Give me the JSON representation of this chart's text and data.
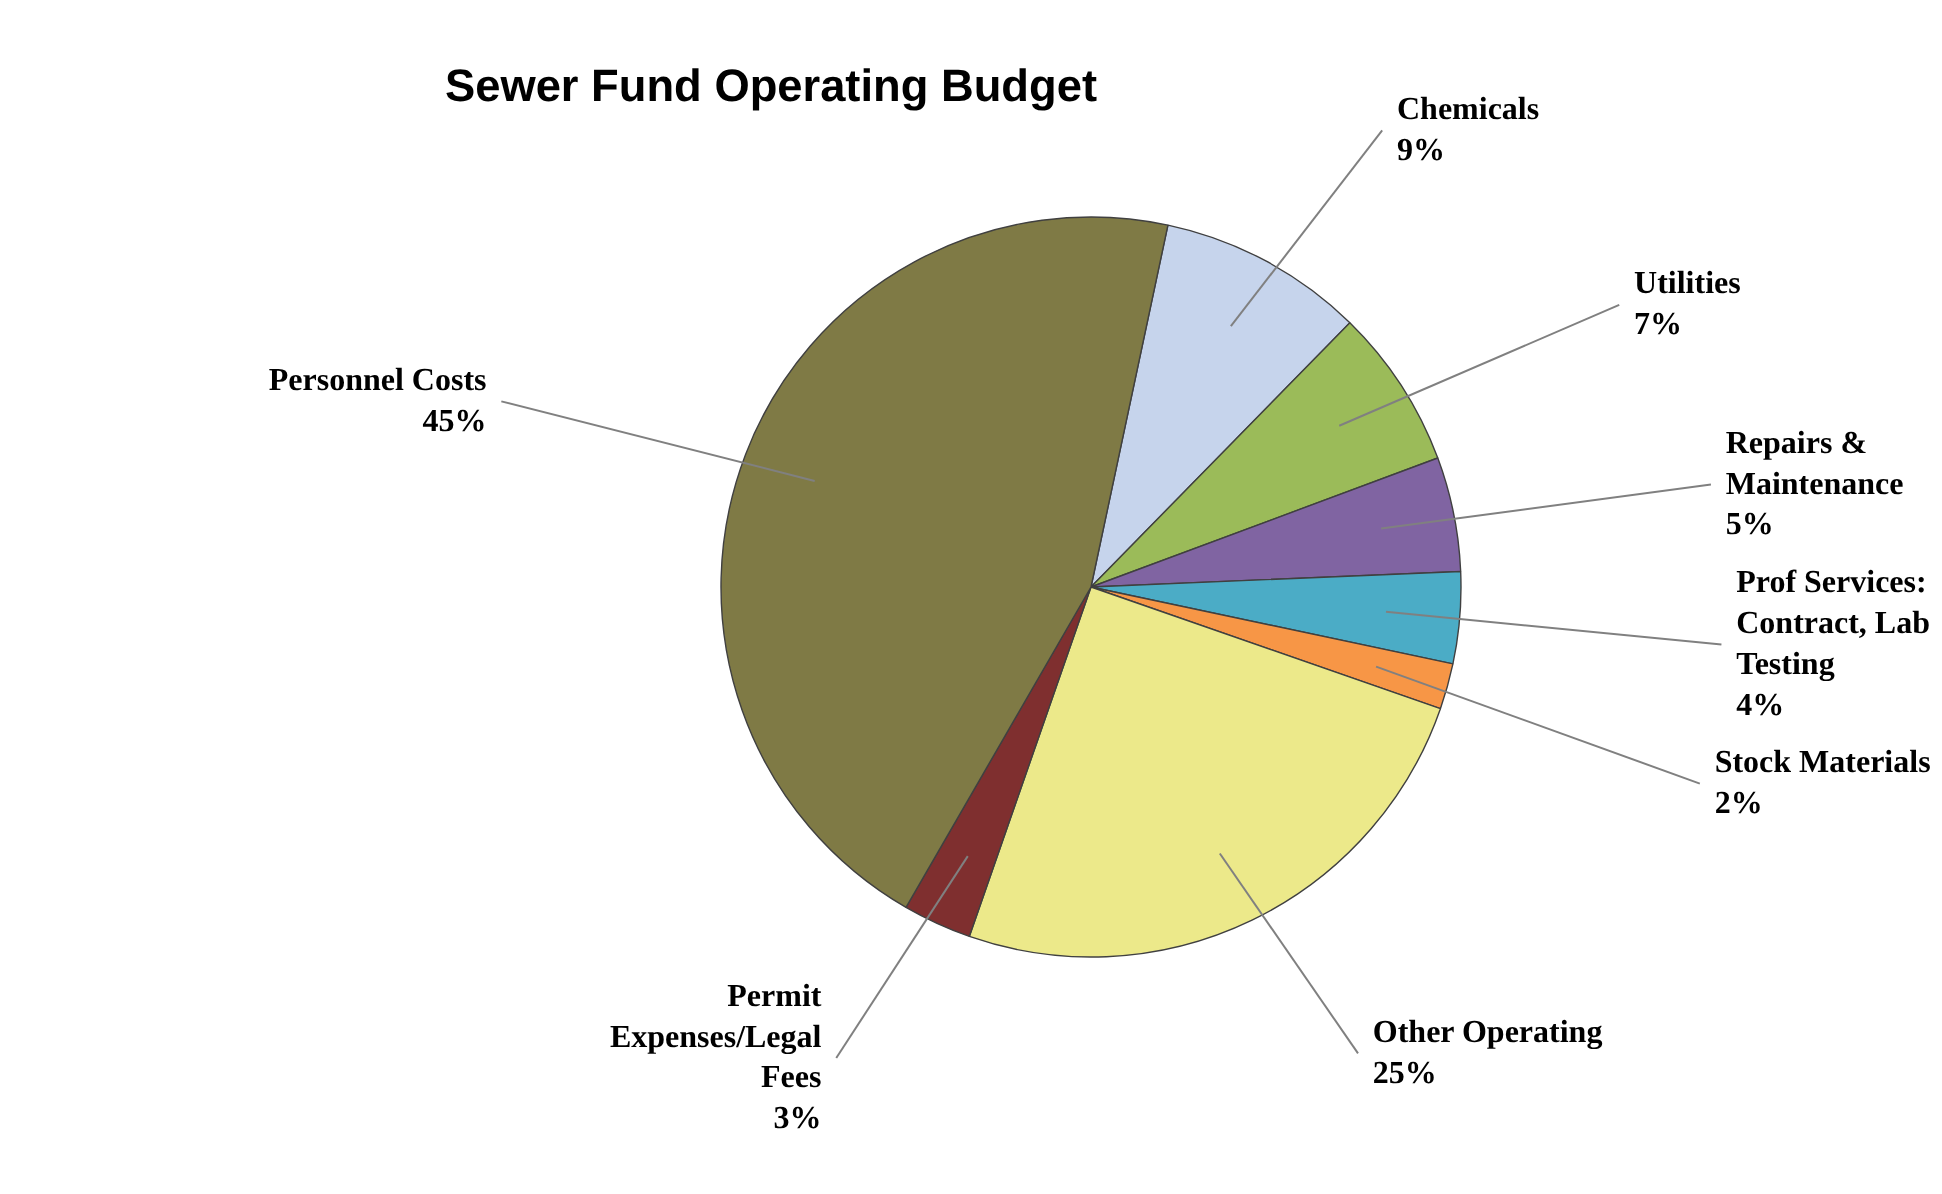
{
  "chart_data": {
    "type": "pie",
    "title": "Sewer Fund Operating Budget",
    "categories": [
      "Chemicals",
      "Utilities",
      "Repairs & Maintenance",
      "Prof Services: Contract, Lab Testing",
      "Stock Materials",
      "Other Operating",
      "Permit Expenses/Legal Fees",
      "Personnel Costs"
    ],
    "values": [
      9,
      7,
      5,
      4,
      2,
      25,
      3,
      45
    ],
    "value_labels": [
      "9%",
      "7%",
      "5%",
      "4%",
      "2%",
      "25%",
      "3%",
      "45%"
    ],
    "colors": [
      "#c6d4ec",
      "#9bbb59",
      "#8064a2",
      "#4bacc6",
      "#f79646",
      "#ece98a",
      "#7f2f2f",
      "#7f7a45"
    ]
  }
}
